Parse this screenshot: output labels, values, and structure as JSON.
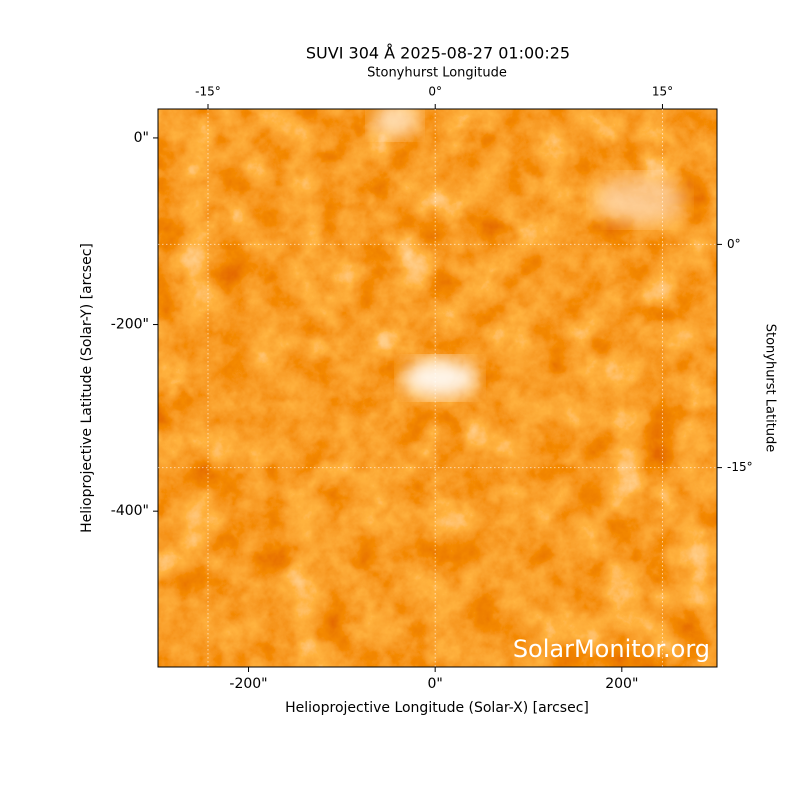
{
  "chart_data": {
    "type": "image",
    "title": "SUVI 304 Å 2025-08-27 01:00:25",
    "xlabel": "Helioprojective Longitude (Solar-X) [arcsec]",
    "ylabel": "Helioprojective Latitude (Solar-Y) [arcsec]",
    "xlim": [
      -297,
      302
    ],
    "ylim": [
      -567,
      31
    ],
    "xticks": [
      {
        "value": -200,
        "label": "-200\""
      },
      {
        "value": 0,
        "label": "0\""
      },
      {
        "value": 200,
        "label": "200\""
      }
    ],
    "yticks": [
      {
        "value": 0,
        "label": "0\""
      },
      {
        "value": -200,
        "label": "-200\""
      },
      {
        "value": -400,
        "label": "-400\""
      }
    ],
    "top_axis": {
      "label": "Stonyhurst Longitude",
      "lim": [
        -18.3,
        18.6
      ],
      "ticks": [
        {
          "value": -15,
          "label": "-15°"
        },
        {
          "value": 0,
          "label": "0°"
        },
        {
          "value": 15,
          "label": "15°"
        }
      ],
      "grid": true
    },
    "right_axis": {
      "label": "Stonyhurst Latitude",
      "lim": [
        -28.4,
        9.1
      ],
      "ticks": [
        {
          "value": 0,
          "label": "0°"
        },
        {
          "value": -15,
          "label": "-15°"
        }
      ],
      "grid": true
    },
    "watermark": "SolarMonitor.org"
  }
}
